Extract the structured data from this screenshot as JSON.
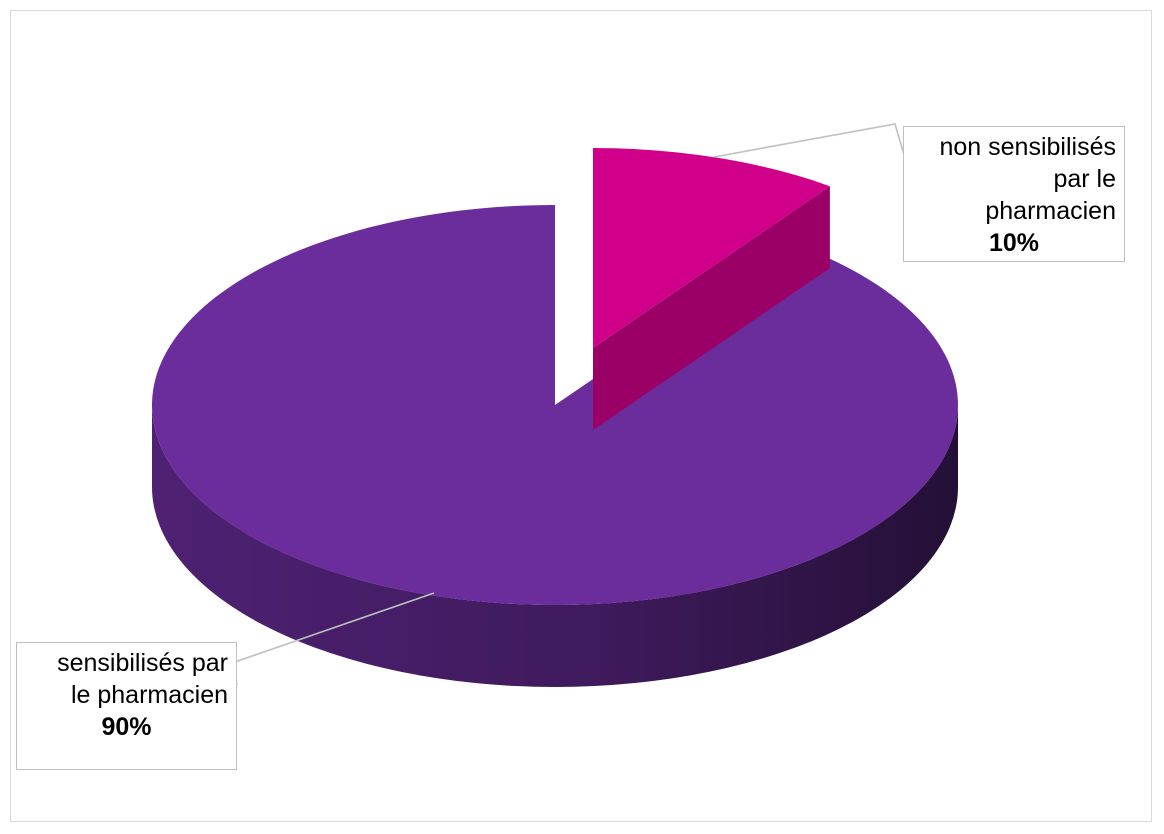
{
  "chart_data": {
    "type": "pie",
    "style": "3d-exploded",
    "title": "",
    "slices": [
      {
        "label": "non sensibilisés par le pharmacien",
        "value": 10,
        "value_label": "10%",
        "color": "#d1008a"
      },
      {
        "label": "sensibilisés par le pharmacien",
        "value": 90,
        "value_label": "90%",
        "color": "#6b2d9b"
      }
    ],
    "legend": "none"
  },
  "callouts": {
    "non": {
      "line1": "non sensibilisés",
      "line2": "par le",
      "line3": "pharmacien",
      "pct": "10%"
    },
    "sens": {
      "line1": "sensibilisés par",
      "line2": "le pharmacien",
      "pct": "90%"
    }
  }
}
